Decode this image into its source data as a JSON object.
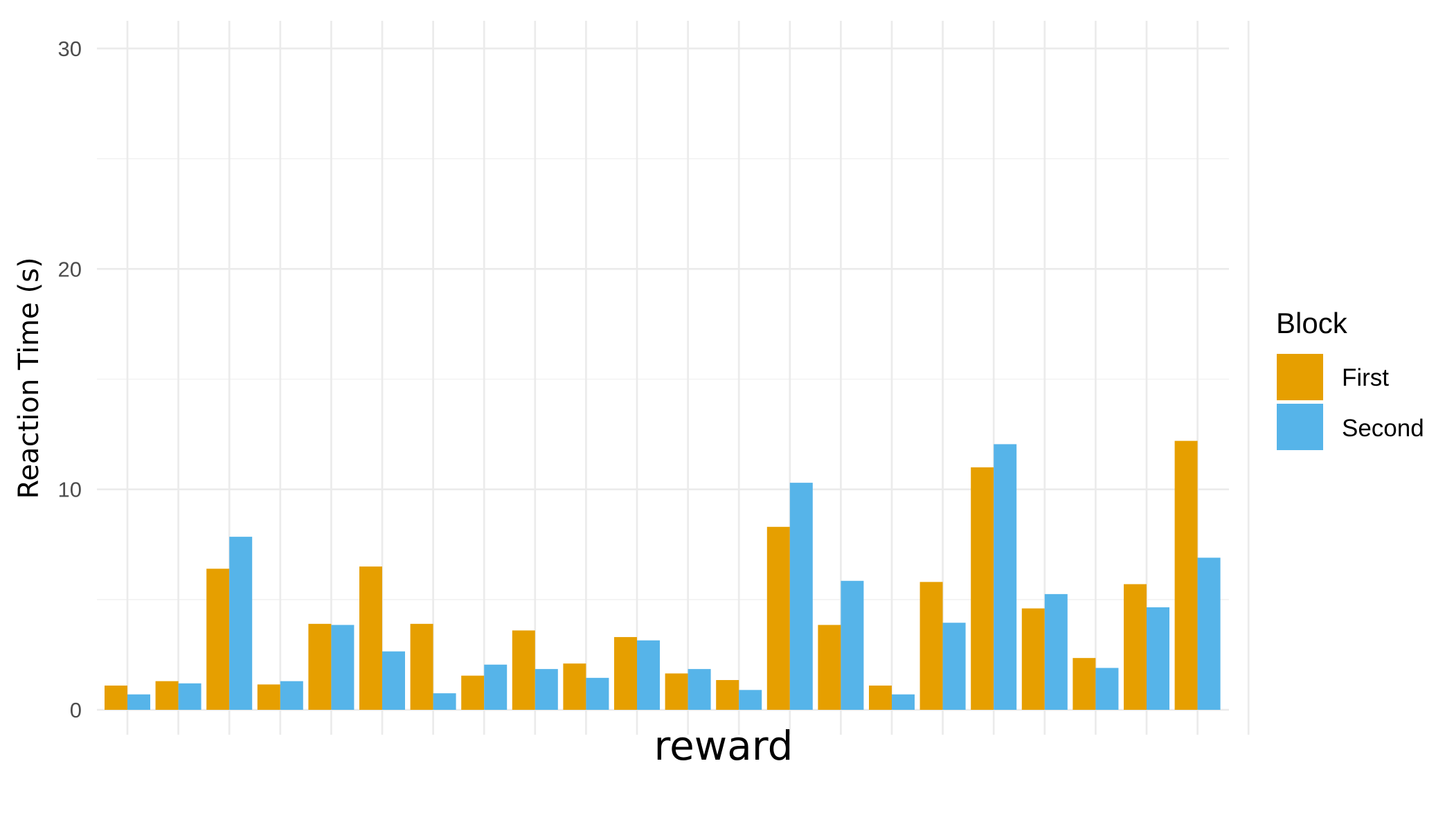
{
  "chart_data": {
    "type": "bar",
    "title": "",
    "xlabel": "reward",
    "ylabel": "Reaction Time (s)",
    "ylim": [
      0,
      30
    ],
    "yticks": [
      0,
      10,
      20,
      30
    ],
    "categories": [
      "",
      "",
      "",
      "",
      "",
      "",
      "",
      "",
      "",
      "",
      "",
      "",
      "",
      "",
      "",
      "",
      "",
      "",
      "",
      "",
      "",
      "",
      ""
    ],
    "series": [
      {
        "name": "First",
        "color": "#E69F00",
        "values": [
          1.1,
          1.3,
          6.4,
          1.15,
          3.9,
          6.5,
          3.9,
          1.55,
          3.6,
          2.1,
          3.3,
          1.65,
          1.35,
          8.3,
          3.85,
          1.1,
          5.8,
          11.0,
          4.6,
          2.35,
          5.7,
          12.2,
          null
        ]
      },
      {
        "name": "Second",
        "color": "#56B4E9",
        "values": [
          0.7,
          1.2,
          7.85,
          1.3,
          3.85,
          2.65,
          0.75,
          2.05,
          1.85,
          1.45,
          3.15,
          1.85,
          0.9,
          10.3,
          5.85,
          0.7,
          3.95,
          12.05,
          5.25,
          1.9,
          4.65,
          6.9,
          null
        ]
      }
    ],
    "grid": true,
    "legend": {
      "title": "Block",
      "placement": "right",
      "entries": [
        "First",
        "Second"
      ]
    }
  }
}
